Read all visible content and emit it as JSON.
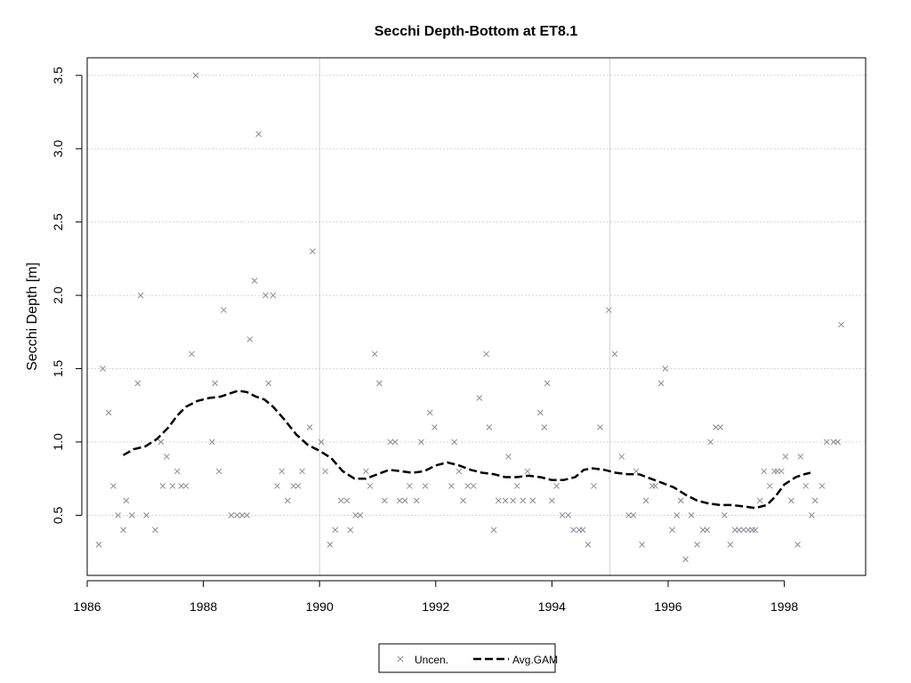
{
  "chart_data": {
    "type": "scatter",
    "title": "Secchi Depth-Bottom at ET8.1",
    "xlabel": "",
    "ylabel": "Secchi Depth [m]",
    "xlim": [
      1986.0,
      1999.4
    ],
    "ylim": [
      0.09,
      3.62
    ],
    "x_ticks": [
      1986,
      1988,
      1990,
      1992,
      1994,
      1996,
      1998
    ],
    "x_tick_labels": [
      "1986",
      "1988",
      "1990",
      "1992",
      "1994",
      "1996",
      "1998"
    ],
    "y_ticks": [
      0.5,
      1.0,
      1.5,
      2.0,
      2.5,
      3.0,
      3.5
    ],
    "y_tick_labels": [
      "0.5",
      "1.0",
      "1.5",
      "2.0",
      "2.5",
      "3.0",
      "3.5"
    ],
    "grid": true,
    "legend_position": "bottom-center",
    "series": [
      {
        "name": "Uncen.",
        "kind": "points",
        "marker": "x",
        "color": "#8a8a9a",
        "points": [
          [
            1986.2,
            0.3
          ],
          [
            1986.27,
            1.5
          ],
          [
            1986.37,
            1.2
          ],
          [
            1986.45,
            0.7
          ],
          [
            1986.53,
            0.5
          ],
          [
            1986.62,
            0.4
          ],
          [
            1986.67,
            0.6
          ],
          [
            1986.77,
            0.5
          ],
          [
            1986.87,
            1.4
          ],
          [
            1986.92,
            2.0
          ],
          [
            1987.02,
            0.5
          ],
          [
            1987.17,
            0.4
          ],
          [
            1987.27,
            1.0
          ],
          [
            1987.3,
            0.7
          ],
          [
            1987.37,
            0.9
          ],
          [
            1987.47,
            0.7
          ],
          [
            1987.55,
            0.8
          ],
          [
            1987.62,
            0.7
          ],
          [
            1987.7,
            0.7
          ],
          [
            1987.8,
            1.6
          ],
          [
            1987.87,
            3.5
          ],
          [
            1988.15,
            1.0
          ],
          [
            1988.2,
            1.4
          ],
          [
            1988.27,
            0.8
          ],
          [
            1988.35,
            1.9
          ],
          [
            1988.48,
            0.5
          ],
          [
            1988.58,
            0.5
          ],
          [
            1988.67,
            0.5
          ],
          [
            1988.75,
            0.5
          ],
          [
            1988.8,
            1.7
          ],
          [
            1988.88,
            2.1
          ],
          [
            1988.95,
            3.1
          ],
          [
            1989.07,
            2.0
          ],
          [
            1989.12,
            1.4
          ],
          [
            1989.2,
            2.0
          ],
          [
            1989.27,
            0.7
          ],
          [
            1989.35,
            0.8
          ],
          [
            1989.45,
            0.6
          ],
          [
            1989.55,
            0.7
          ],
          [
            1989.63,
            0.7
          ],
          [
            1989.7,
            0.8
          ],
          [
            1989.83,
            1.1
          ],
          [
            1989.88,
            2.3
          ],
          [
            1990.03,
            1.0
          ],
          [
            1990.1,
            0.8
          ],
          [
            1990.18,
            0.3
          ],
          [
            1990.27,
            0.4
          ],
          [
            1990.37,
            0.6
          ],
          [
            1990.47,
            0.6
          ],
          [
            1990.53,
            0.4
          ],
          [
            1990.62,
            0.5
          ],
          [
            1990.7,
            0.5
          ],
          [
            1990.8,
            0.8
          ],
          [
            1990.87,
            0.7
          ],
          [
            1990.95,
            1.6
          ],
          [
            1991.03,
            1.4
          ],
          [
            1991.12,
            0.6
          ],
          [
            1991.22,
            1.0
          ],
          [
            1991.3,
            1.0
          ],
          [
            1991.38,
            0.6
          ],
          [
            1991.47,
            0.6
          ],
          [
            1991.55,
            0.7
          ],
          [
            1991.67,
            0.6
          ],
          [
            1991.75,
            1.0
          ],
          [
            1991.82,
            0.7
          ],
          [
            1991.9,
            1.2
          ],
          [
            1991.98,
            1.1
          ],
          [
            1992.27,
            0.7
          ],
          [
            1992.32,
            1.0
          ],
          [
            1992.4,
            0.8
          ],
          [
            1992.47,
            0.6
          ],
          [
            1992.55,
            0.7
          ],
          [
            1992.65,
            0.7
          ],
          [
            1992.75,
            1.3
          ],
          [
            1992.87,
            1.6
          ],
          [
            1992.92,
            1.1
          ],
          [
            1993.0,
            0.4
          ],
          [
            1993.08,
            0.6
          ],
          [
            1993.2,
            0.6
          ],
          [
            1993.25,
            0.9
          ],
          [
            1993.33,
            0.6
          ],
          [
            1993.4,
            0.7
          ],
          [
            1993.5,
            0.6
          ],
          [
            1993.58,
            0.8
          ],
          [
            1993.67,
            0.6
          ],
          [
            1993.8,
            1.2
          ],
          [
            1993.87,
            1.1
          ],
          [
            1993.92,
            1.4
          ],
          [
            1994.0,
            0.6
          ],
          [
            1994.08,
            0.7
          ],
          [
            1994.18,
            0.5
          ],
          [
            1994.28,
            0.5
          ],
          [
            1994.37,
            0.4
          ],
          [
            1994.47,
            0.4
          ],
          [
            1994.53,
            0.4
          ],
          [
            1994.62,
            0.3
          ],
          [
            1994.72,
            0.7
          ],
          [
            1994.83,
            1.1
          ],
          [
            1994.98,
            1.9
          ],
          [
            1995.08,
            1.6
          ],
          [
            1995.2,
            0.9
          ],
          [
            1995.32,
            0.5
          ],
          [
            1995.4,
            0.5
          ],
          [
            1995.45,
            0.8
          ],
          [
            1995.55,
            0.3
          ],
          [
            1995.62,
            0.6
          ],
          [
            1995.73,
            0.7
          ],
          [
            1995.78,
            0.7
          ],
          [
            1995.88,
            1.4
          ],
          [
            1995.95,
            1.5
          ],
          [
            1996.07,
            0.4
          ],
          [
            1996.15,
            0.5
          ],
          [
            1996.22,
            0.6
          ],
          [
            1996.3,
            0.2
          ],
          [
            1996.4,
            0.5
          ],
          [
            1996.5,
            0.3
          ],
          [
            1996.6,
            0.4
          ],
          [
            1996.67,
            0.4
          ],
          [
            1996.73,
            1.0
          ],
          [
            1996.82,
            1.1
          ],
          [
            1996.9,
            1.1
          ],
          [
            1996.97,
            0.5
          ],
          [
            1997.07,
            0.3
          ],
          [
            1997.15,
            0.4
          ],
          [
            1997.22,
            0.4
          ],
          [
            1997.3,
            0.4
          ],
          [
            1997.38,
            0.4
          ],
          [
            1997.45,
            0.4
          ],
          [
            1997.5,
            0.4
          ],
          [
            1997.58,
            0.6
          ],
          [
            1997.65,
            0.8
          ],
          [
            1997.75,
            0.7
          ],
          [
            1997.83,
            0.8
          ],
          [
            1997.88,
            0.8
          ],
          [
            1997.95,
            0.8
          ],
          [
            1998.02,
            0.9
          ],
          [
            1998.12,
            0.6
          ],
          [
            1998.23,
            0.3
          ],
          [
            1998.28,
            0.9
          ],
          [
            1998.37,
            0.7
          ],
          [
            1998.47,
            0.5
          ],
          [
            1998.53,
            0.6
          ],
          [
            1998.65,
            0.7
          ],
          [
            1998.73,
            1.0
          ],
          [
            1998.85,
            1.0
          ],
          [
            1998.92,
            1.0
          ],
          [
            1998.98,
            1.8
          ]
        ]
      },
      {
        "name": "Avg.GAM",
        "kind": "line",
        "dash": "dashed",
        "color": "#000000",
        "points": [
          [
            1986.62,
            0.91
          ],
          [
            1986.8,
            0.95
          ],
          [
            1987.0,
            0.97
          ],
          [
            1987.2,
            1.02
          ],
          [
            1987.4,
            1.1
          ],
          [
            1987.55,
            1.18
          ],
          [
            1987.7,
            1.24
          ],
          [
            1987.9,
            1.28
          ],
          [
            1988.1,
            1.3
          ],
          [
            1988.3,
            1.31
          ],
          [
            1988.45,
            1.33
          ],
          [
            1988.6,
            1.35
          ],
          [
            1988.75,
            1.34
          ],
          [
            1988.9,
            1.31
          ],
          [
            1989.05,
            1.29
          ],
          [
            1989.2,
            1.24
          ],
          [
            1989.4,
            1.15
          ],
          [
            1989.6,
            1.05
          ],
          [
            1989.8,
            0.98
          ],
          [
            1990.0,
            0.94
          ],
          [
            1990.2,
            0.89
          ],
          [
            1990.4,
            0.8
          ],
          [
            1990.6,
            0.75
          ],
          [
            1990.8,
            0.75
          ],
          [
            1991.0,
            0.78
          ],
          [
            1991.2,
            0.81
          ],
          [
            1991.4,
            0.8
          ],
          [
            1991.6,
            0.79
          ],
          [
            1991.8,
            0.8
          ],
          [
            1992.0,
            0.84
          ],
          [
            1992.2,
            0.86
          ],
          [
            1992.4,
            0.84
          ],
          [
            1992.6,
            0.81
          ],
          [
            1992.8,
            0.79
          ],
          [
            1993.0,
            0.78
          ],
          [
            1993.2,
            0.76
          ],
          [
            1993.4,
            0.76
          ],
          [
            1993.6,
            0.77
          ],
          [
            1993.8,
            0.76
          ],
          [
            1994.0,
            0.74
          ],
          [
            1994.2,
            0.74
          ],
          [
            1994.4,
            0.76
          ],
          [
            1994.55,
            0.81
          ],
          [
            1994.7,
            0.82
          ],
          [
            1994.9,
            0.81
          ],
          [
            1995.1,
            0.79
          ],
          [
            1995.3,
            0.78
          ],
          [
            1995.5,
            0.78
          ],
          [
            1995.7,
            0.75
          ],
          [
            1995.9,
            0.72
          ],
          [
            1996.1,
            0.69
          ],
          [
            1996.3,
            0.64
          ],
          [
            1996.5,
            0.6
          ],
          [
            1996.7,
            0.58
          ],
          [
            1996.9,
            0.57
          ],
          [
            1997.1,
            0.57
          ],
          [
            1997.3,
            0.56
          ],
          [
            1997.5,
            0.55
          ],
          [
            1997.7,
            0.57
          ],
          [
            1997.85,
            0.63
          ],
          [
            1998.0,
            0.71
          ],
          [
            1998.2,
            0.76
          ],
          [
            1998.35,
            0.78
          ],
          [
            1998.45,
            0.79
          ]
        ]
      }
    ]
  }
}
